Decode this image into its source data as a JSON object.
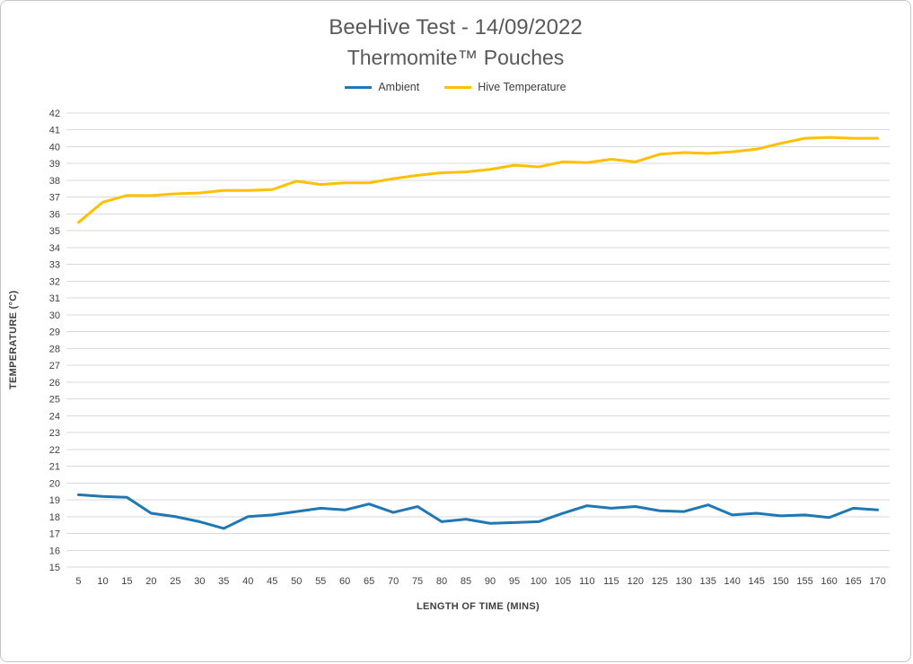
{
  "header": {
    "title": "BeeHive Test - 14/09/2022",
    "subtitle": "Thermomite™ Pouches"
  },
  "chart_data": {
    "type": "line",
    "x": [
      5,
      10,
      15,
      20,
      25,
      30,
      35,
      40,
      45,
      50,
      55,
      60,
      65,
      70,
      75,
      80,
      85,
      90,
      95,
      100,
      105,
      110,
      115,
      120,
      125,
      130,
      135,
      140,
      145,
      150,
      155,
      160,
      165,
      170
    ],
    "series": [
      {
        "name": "Ambient",
        "color": "#1F77B4",
        "values": [
          19.3,
          19.2,
          19.15,
          18.2,
          18.0,
          17.7,
          17.3,
          18.0,
          18.1,
          18.3,
          18.5,
          18.4,
          18.75,
          18.25,
          18.6,
          17.7,
          17.85,
          17.6,
          17.65,
          17.7,
          18.2,
          18.65,
          18.5,
          18.6,
          18.35,
          18.3,
          18.7,
          18.1,
          18.2,
          18.05,
          18.1,
          17.95,
          18.5,
          18.4
        ]
      },
      {
        "name": "Hive Temperature",
        "color": "#FFC000",
        "values": [
          35.5,
          36.7,
          37.1,
          37.1,
          37.2,
          37.25,
          37.4,
          37.4,
          37.45,
          37.95,
          37.75,
          37.85,
          37.85,
          38.1,
          38.3,
          38.45,
          38.5,
          38.65,
          38.9,
          38.8,
          39.1,
          39.05,
          39.25,
          39.1,
          39.55,
          39.65,
          39.6,
          39.7,
          39.85,
          40.2,
          40.5,
          40.55,
          40.5,
          40.5
        ]
      }
    ],
    "xlabel": "LENGTH OF TIME (MINS)",
    "ylabel": "TEMPERATURE (°C)",
    "ylim": [
      15,
      42
    ],
    "ytick_step": 1,
    "grid": "horizontal",
    "gridline_color": "#D9D9D9",
    "legend_position": "top"
  }
}
